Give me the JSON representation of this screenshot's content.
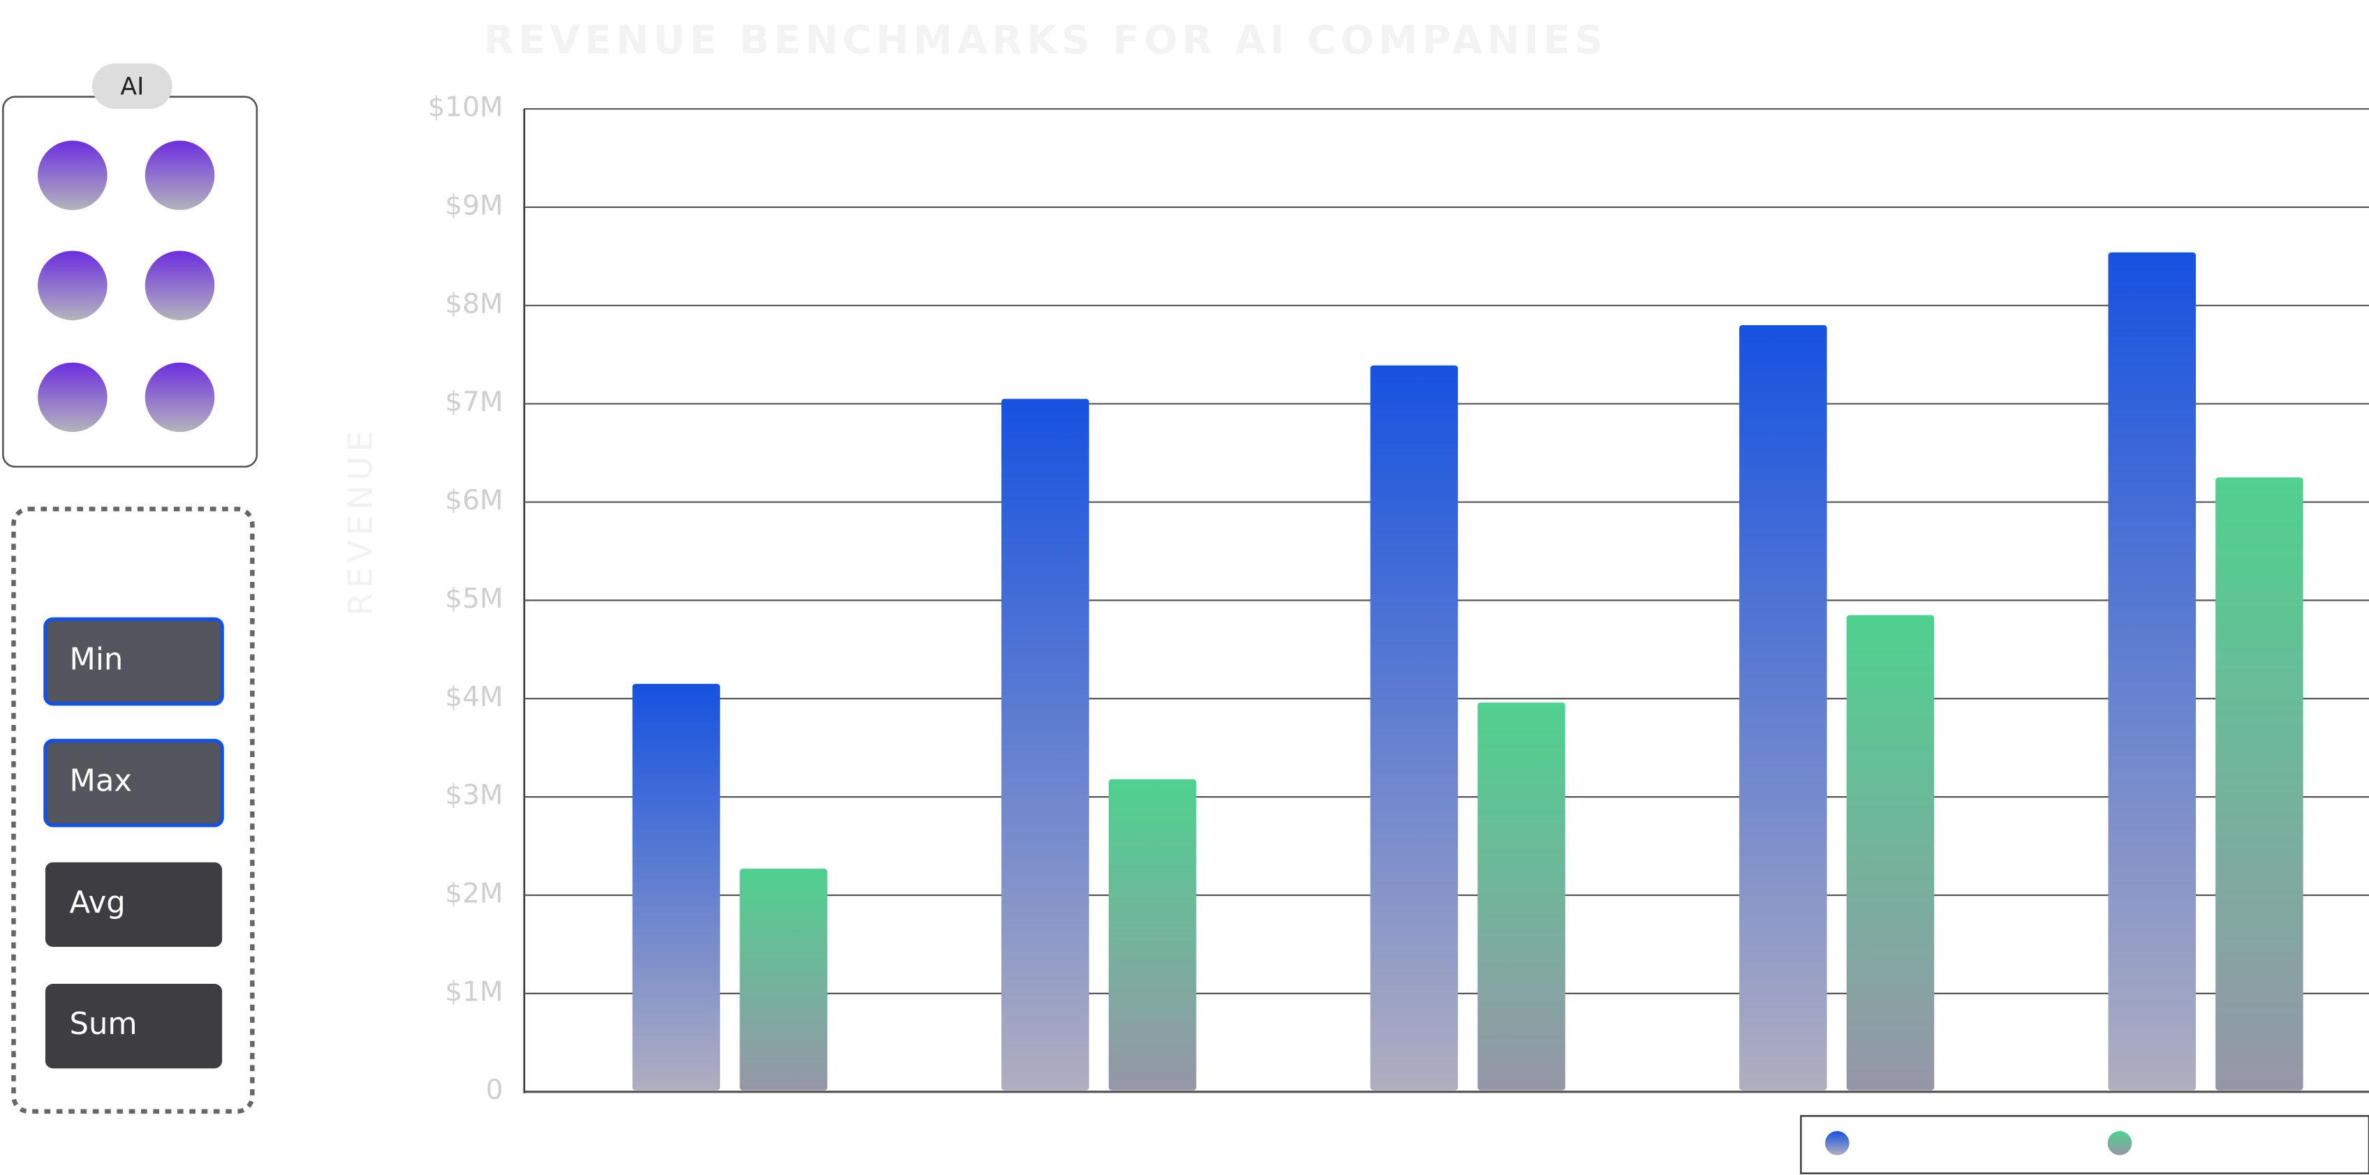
{
  "panel": {
    "badge": "AI",
    "buttons": [
      "Min",
      "Max",
      "Avg",
      "Sum"
    ]
  },
  "chart_data": {
    "type": "bar",
    "title": "REVENUE BENCHMARKS FOR AI COMPANIES",
    "y_label": "REVENUE",
    "categories": [
      null,
      null,
      null,
      null,
      null
    ],
    "series": [
      {
        "color": "#1652e0",
        "values": [
          4150000,
          7050000,
          7390000,
          7800000,
          8540000
        ]
      },
      {
        "color": "#4fd18f",
        "values": [
          2270000,
          3180000,
          3960000,
          4850000,
          6250000
        ]
      }
    ],
    "ylim": [
      0,
      10000000
    ],
    "yticks": [
      0,
      {
        "value": 1000000,
        "label": "$1M"
      },
      {
        "value": 2000000,
        "label": "$2M"
      },
      {
        "value": 3000000,
        "label": "$3M"
      },
      {
        "value": 4000000,
        "label": "$4M"
      },
      {
        "value": 5000000,
        "label": "$5M"
      },
      {
        "value": 6000000,
        "label": "$6M"
      },
      {
        "value": 7000000,
        "label": "$7M"
      },
      {
        "value": 8000000,
        "label": "$8M"
      },
      {
        "value": 9000000,
        "label": "$9M"
      },
      {
        "value": 10000000,
        "label": "$10M"
      }
    ],
    "grid": true
  }
}
